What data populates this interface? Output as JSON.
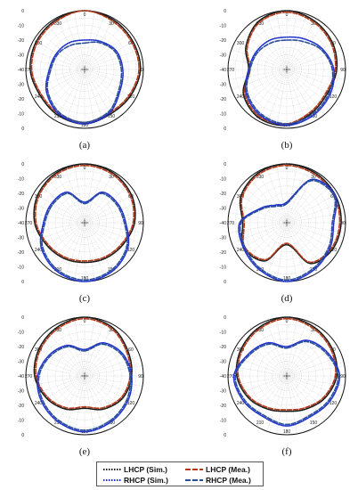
{
  "chart_data": {
    "type": "polar",
    "angles_deg": [
      0,
      30,
      60,
      90,
      120,
      150,
      180,
      210,
      240,
      270,
      300,
      330
    ],
    "radial_ticks": [
      0,
      -10,
      -20,
      -30,
      -40
    ],
    "rlim": [
      -40,
      0
    ],
    "grid": true,
    "legend_placement": "bottom-center",
    "legend": [
      {
        "label": "LHCP (Sim.)",
        "color": "#1a1a1a",
        "style": "dotted"
      },
      {
        "label": "LHCP (Mea.)",
        "color": "#b13a1a",
        "style": "dashed"
      },
      {
        "label": "RHCP (Sim.)",
        "color": "#2233cc",
        "style": "dotted"
      },
      {
        "label": "RHCP (Mea.)",
        "color": "#2a4f9a",
        "style": "dashed"
      }
    ],
    "panels": [
      {
        "label": "(a)",
        "series": [
          {
            "name": "LHCP (Sim.)",
            "r": [
              0,
              -1,
              -2,
              -2,
              -4,
              -5,
              -3,
              -4,
              -5,
              -3,
              -2,
              -1
            ]
          },
          {
            "name": "LHCP (Mea.)",
            "r": [
              0,
              -2,
              -3,
              -3,
              -5,
              -6,
              -4,
              -5,
              -6,
              -4,
              -3,
              -2
            ]
          },
          {
            "name": "RHCP (Sim.)",
            "r": [
              -20,
              -18,
              -15,
              -14,
              -12,
              -6,
              -3,
              -5,
              -10,
              -16,
              -18,
              -19
            ]
          },
          {
            "name": "RHCP (Mea.)",
            "r": [
              -22,
              -19,
              -16,
              -15,
              -13,
              -7,
              -4,
              -6,
              -11,
              -17,
              -19,
              -21
            ]
          }
        ]
      },
      {
        "label": "(b)",
        "series": [
          {
            "name": "LHCP (Sim.)",
            "r": [
              0,
              -2,
              -4,
              -6,
              -8,
              -6,
              -2,
              -2,
              -6,
              -14,
              -8,
              -2
            ]
          },
          {
            "name": "LHCP (Mea.)",
            "r": [
              -1,
              -3,
              -5,
              -7,
              -9,
              -7,
              -3,
              -3,
              -7,
              -15,
              -9,
              -3
            ]
          },
          {
            "name": "RHCP (Sim.)",
            "r": [
              -18,
              -16,
              -12,
              -8,
              -6,
              -4,
              -2,
              -4,
              -8,
              -14,
              -16,
              -17
            ]
          },
          {
            "name": "RHCP (Mea.)",
            "r": [
              -20,
              -18,
              -13,
              -9,
              -7,
              -5,
              -3,
              -5,
              -9,
              -15,
              -17,
              -19
            ]
          }
        ]
      },
      {
        "label": "(c)",
        "series": [
          {
            "name": "LHCP (Sim.)",
            "r": [
              0,
              -1,
              -3,
              -6,
              -10,
              -12,
              -13,
              -12,
              -10,
              -6,
              -3,
              -1
            ]
          },
          {
            "name": "LHCP (Mea.)",
            "r": [
              -1,
              -2,
              -4,
              -7,
              -11,
              -13,
              -14,
              -13,
              -11,
              -7,
              -4,
              -2
            ]
          },
          {
            "name": "RHCP (Sim.)",
            "r": [
              -26,
              -16,
              -14,
              -12,
              -6,
              -2,
              0,
              -2,
              -6,
              -12,
              -14,
              -16
            ]
          },
          {
            "name": "RHCP (Mea.)",
            "r": [
              -27,
              -17,
              -15,
              -13,
              -7,
              -3,
              -1,
              -3,
              -7,
              -13,
              -15,
              -17
            ]
          }
        ]
      },
      {
        "label": "(d)",
        "series": [
          {
            "name": "LHCP (Sim.)",
            "r": [
              0,
              -1,
              -2,
              -3,
              -4,
              -8,
              -25,
              -10,
              -6,
              -10,
              -4,
              -1
            ]
          },
          {
            "name": "LHCP (Mea.)",
            "r": [
              -1,
              -2,
              -3,
              -4,
              -5,
              -9,
              -26,
              -11,
              -7,
              -11,
              -5,
              -2
            ]
          },
          {
            "name": "RHCP (Sim.)",
            "r": [
              -26,
              -6,
              -2,
              -8,
              -6,
              -3,
              0,
              -3,
              -6,
              -8,
              -20,
              -26
            ]
          },
          {
            "name": "RHCP (Mea.)",
            "r": [
              -27,
              -7,
              -3,
              -9,
              -7,
              -4,
              -1,
              -4,
              -7,
              -9,
              -21,
              -27
            ]
          }
        ]
      },
      {
        "label": "(e)",
        "series": [
          {
            "name": "LHCP (Sim.)",
            "r": [
              0,
              -2,
              -6,
              -8,
              -10,
              -14,
              -18,
              -14,
              -10,
              -6,
              -4,
              -2
            ]
          },
          {
            "name": "LHCP (Mea.)",
            "r": [
              -1,
              -3,
              -7,
              -9,
              -11,
              -15,
              -19,
              -15,
              -11,
              -7,
              -5,
              -3
            ]
          },
          {
            "name": "RHCP (Sim.)",
            "r": [
              -22,
              -14,
              -10,
              -8,
              -6,
              -4,
              -2,
              -4,
              -6,
              -8,
              -12,
              -16
            ]
          },
          {
            "name": "RHCP (Mea.)",
            "r": [
              -23,
              -15,
              -11,
              -9,
              -7,
              -5,
              -3,
              -5,
              -7,
              -9,
              -13,
              -17
            ]
          }
        ]
      },
      {
        "label": "(f)",
        "series": [
          {
            "name": "LHCP (Sim.)",
            "r": [
              0,
              -2,
              -4,
              -6,
              -10,
              -14,
              -16,
              -14,
              -10,
              -6,
              -4,
              -2
            ]
          },
          {
            "name": "LHCP (Mea.)",
            "r": [
              -1,
              -3,
              -5,
              -7,
              -11,
              -15,
              -17,
              -15,
              -11,
              -7,
              -5,
              -3
            ]
          },
          {
            "name": "RHCP (Sim.)",
            "r": [
              -20,
              -12,
              -8,
              -4,
              -6,
              -8,
              -6,
              -8,
              -6,
              -4,
              -10,
              -14
            ]
          },
          {
            "name": "RHCP (Mea.)",
            "r": [
              -21,
              -13,
              -9,
              -5,
              -7,
              -9,
              -7,
              -9,
              -7,
              -5,
              -11,
              -15
            ]
          }
        ]
      }
    ]
  }
}
